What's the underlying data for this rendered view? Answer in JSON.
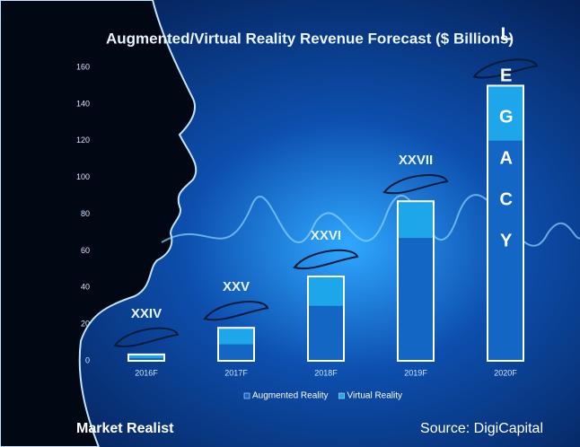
{
  "chart_data": {
    "type": "bar",
    "stacked": true,
    "title": "Augmented/Virtual Reality Revenue Forecast ($ Billions)",
    "categories": [
      "2016F",
      "2017F",
      "2018F",
      "2019F",
      "2020F"
    ],
    "series": [
      {
        "name": "Augmented Reality",
        "color": "#1466c4",
        "values": [
          1.5,
          9,
          30,
          67,
          120
        ]
      },
      {
        "name": "Virtual Reality",
        "color": "#1ea6ea",
        "values": [
          2,
          9,
          16,
          20,
          30
        ]
      }
    ],
    "ylim": [
      0,
      160
    ],
    "yticks": [
      0,
      20,
      40,
      60,
      80,
      100,
      120,
      140,
      160
    ],
    "legend": "bottom",
    "annotations": [
      "XXIV",
      "XXV",
      "XXVI",
      "XXVII"
    ],
    "bar_label": "LEGACY",
    "brand": "Market Realist",
    "source": "Source: DigiCapital"
  }
}
